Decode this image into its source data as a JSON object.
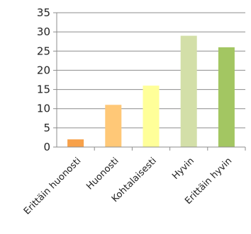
{
  "chart_data": {
    "type": "bar",
    "title": "",
    "xlabel": "",
    "ylabel": "",
    "ylim": [
      0,
      35
    ],
    "yticks": [
      0,
      5,
      10,
      15,
      20,
      25,
      30,
      35
    ],
    "ytick_labels": [
      "0",
      "5",
      "10",
      "15",
      "20",
      "25",
      "30",
      "35"
    ],
    "categories": [
      "Erittäin huonosti",
      "Huonosti",
      "Kohtalaisesti",
      "Hyvin",
      "Erittäin hyvin"
    ],
    "values": [
      2,
      11,
      16,
      29,
      26
    ],
    "colors": [
      "#f7a14a",
      "#ffc877",
      "#ffff99",
      "#d3dfa8",
      "#a3c662"
    ],
    "grid": true,
    "legend": "none"
  }
}
